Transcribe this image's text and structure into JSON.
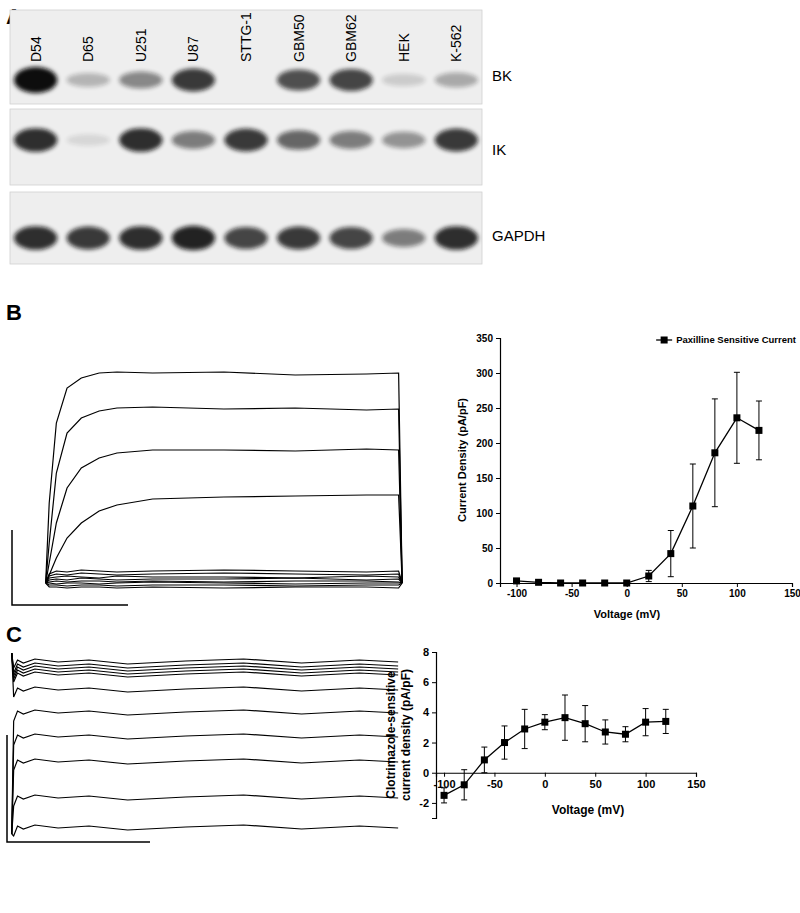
{
  "panel_labels": [
    "A",
    "B",
    "C"
  ],
  "blot": {
    "lanes": [
      "D54",
      "D65",
      "U251",
      "U87",
      "STTG-1",
      "GBM50",
      "GBM62",
      "HEK",
      "K-562"
    ],
    "rows": [
      {
        "label": "BK",
        "intensity": [
          1.0,
          0.25,
          0.45,
          0.8,
          0,
          0.7,
          0.75,
          0.15,
          0.3
        ]
      },
      {
        "label": "IK",
        "intensity": [
          0.85,
          0.1,
          0.85,
          0.5,
          0.8,
          0.6,
          0.5,
          0.4,
          0.8
        ]
      },
      {
        "label": "GAPDH",
        "intensity": [
          0.85,
          0.8,
          0.85,
          0.9,
          0.75,
          0.8,
          0.75,
          0.5,
          0.85
        ]
      }
    ]
  },
  "chart_data": [
    {
      "type": "line",
      "tick_labels": false,
      "color": "#000000",
      "line_style": "solid",
      "x": [
        0,
        1,
        3,
        6,
        10,
        15,
        20,
        30,
        50,
        70,
        90,
        99,
        100
      ],
      "xlim": [
        -10,
        105
      ],
      "ylim": [
        -22,
        223
      ],
      "series": [
        {
          "values": [
            0,
            80,
            160,
            195,
            205,
            210,
            211,
            210,
            211,
            208,
            209,
            210,
            0
          ]
        },
        {
          "values": [
            0,
            40,
            110,
            150,
            165,
            172,
            175,
            176,
            174,
            175,
            173,
            174,
            0
          ]
        },
        {
          "values": [
            0,
            20,
            60,
            95,
            115,
            125,
            130,
            133,
            133,
            132,
            134,
            133,
            0
          ]
        },
        {
          "values": [
            0,
            8,
            25,
            45,
            60,
            72,
            78,
            84,
            86,
            87,
            88,
            88,
            0
          ]
        },
        {
          "values": [
            0,
            9,
            12,
            11,
            13,
            12,
            11,
            12,
            13,
            12,
            11,
            12,
            0
          ]
        },
        {
          "values": [
            0,
            7,
            9,
            8,
            10,
            9,
            8,
            9,
            10,
            9,
            8,
            9,
            0
          ]
        },
        {
          "values": [
            0,
            5,
            6,
            7,
            6,
            5,
            7,
            6,
            6,
            5,
            7,
            6,
            0
          ]
        },
        {
          "values": [
            0,
            3,
            4,
            3,
            5,
            4,
            3,
            4,
            4,
            5,
            3,
            4,
            0
          ]
        },
        {
          "values": [
            0,
            1,
            2,
            1,
            2,
            2,
            1,
            2,
            1,
            2,
            2,
            1,
            0
          ]
        },
        {
          "values": [
            0,
            0,
            -1,
            0,
            0,
            -1,
            0,
            1,
            0,
            -1,
            0,
            0,
            0
          ]
        },
        {
          "values": [
            0,
            -2,
            -2,
            -3,
            -2,
            -2,
            -3,
            -2,
            -2,
            -3,
            -2,
            -2,
            0
          ]
        },
        {
          "values": [
            0,
            -4,
            -4,
            -5,
            -4,
            -4,
            -5,
            -4,
            -5,
            -4,
            -4,
            -5,
            0
          ]
        }
      ]
    },
    {
      "type": "line",
      "legend": "top-right",
      "x": [
        -100,
        -80,
        -60,
        -40,
        -20,
        0,
        20,
        40,
        60,
        80,
        100,
        120
      ],
      "xlim": [
        -115,
        150
      ],
      "xticks": [
        -100,
        -50,
        0,
        50,
        100,
        150
      ],
      "ylim": [
        0,
        350
      ],
      "yticks": [
        0,
        50,
        100,
        150,
        200,
        250,
        300,
        350
      ],
      "x_label": "Voltage (mV)",
      "y_label": "Current Density (pA/pF)",
      "series": [
        {
          "name": "Paxilline Sensitive Current",
          "color": "#000000",
          "marker": "square",
          "line_style": "solid",
          "values": [
            3,
            1,
            0,
            0,
            0,
            0,
            10,
            42,
            110,
            186,
            236,
            218
          ],
          "error": [
            1,
            1,
            0,
            0,
            0,
            0,
            8,
            33,
            60,
            77,
            65,
            42
          ]
        }
      ]
    },
    {
      "type": "line",
      "tick_labels": false,
      "color": "#000000",
      "line_style": "solid",
      "x": [
        0,
        0.5,
        1.5,
        3,
        6,
        12,
        20,
        30,
        45,
        60,
        75,
        90,
        100
      ],
      "xlim": [
        -2,
        101
      ],
      "ylim": [
        -2,
        186
      ],
      "series": [
        {
          "values": [
            183,
            168,
            176,
            173,
            177,
            174,
            176,
            172,
            175,
            177,
            173,
            176,
            174
          ]
        },
        {
          "values": [
            183,
            163,
            172,
            169,
            173,
            170,
            172,
            168,
            171,
            173,
            169,
            172,
            170
          ]
        },
        {
          "values": [
            183,
            160,
            169,
            166,
            170,
            167,
            169,
            165,
            168,
            170,
            166,
            169,
            167
          ]
        },
        {
          "values": [
            183,
            157,
            166,
            163,
            167,
            164,
            166,
            162,
            165,
            167,
            163,
            166,
            164
          ]
        },
        {
          "values": [
            183,
            154,
            163,
            160,
            164,
            161,
            163,
            159,
            162,
            164,
            160,
            163,
            161
          ]
        },
        {
          "values": [
            183,
            139,
            148,
            145,
            149,
            146,
            148,
            144,
            147,
            149,
            145,
            148,
            146
          ]
        },
        {
          "values": [
            2,
            115,
            125,
            122,
            126,
            123,
            125,
            121,
            124,
            126,
            122,
            125,
            123
          ]
        },
        {
          "values": [
            2,
            91,
            101,
            98,
            102,
            99,
            101,
            97,
            100,
            102,
            98,
            101,
            99
          ]
        },
        {
          "values": [
            2,
            66,
            76,
            73,
            77,
            74,
            76,
            72,
            75,
            77,
            73,
            76,
            74
          ]
        },
        {
          "values": [
            2,
            30,
            40,
            37,
            41,
            38,
            40,
            36,
            39,
            41,
            37,
            40,
            38
          ]
        },
        {
          "values": [
            2,
            0,
            10,
            7,
            11,
            8,
            10,
            6,
            9,
            11,
            7,
            10,
            8
          ]
        }
      ]
    },
    {
      "type": "line",
      "x": [
        -100,
        -80,
        -60,
        -40,
        -20,
        0,
        20,
        40,
        60,
        80,
        100,
        120
      ],
      "xlim": [
        -108,
        150
      ],
      "xticks": [
        -100,
        -50,
        0,
        50,
        100,
        150
      ],
      "ylim": [
        -3,
        8
      ],
      "yticks": [
        -2,
        0,
        2,
        4,
        6,
        8
      ],
      "x_label": "Voltage (mV)",
      "y_label": [
        "Clotrimazole-sensitive",
        "current density (pA/pF)"
      ],
      "series": [
        {
          "color": "#000000",
          "marker": "square",
          "line_style": "solid",
          "values": [
            -1.5,
            -0.8,
            0.85,
            2.0,
            2.9,
            3.35,
            3.65,
            3.25,
            2.7,
            2.55,
            3.35,
            3.4
          ],
          "error": [
            0.5,
            1.0,
            0.85,
            1.1,
            1.3,
            0.5,
            1.5,
            1.2,
            0.8,
            0.5,
            0.9,
            0.8
          ]
        }
      ]
    }
  ]
}
